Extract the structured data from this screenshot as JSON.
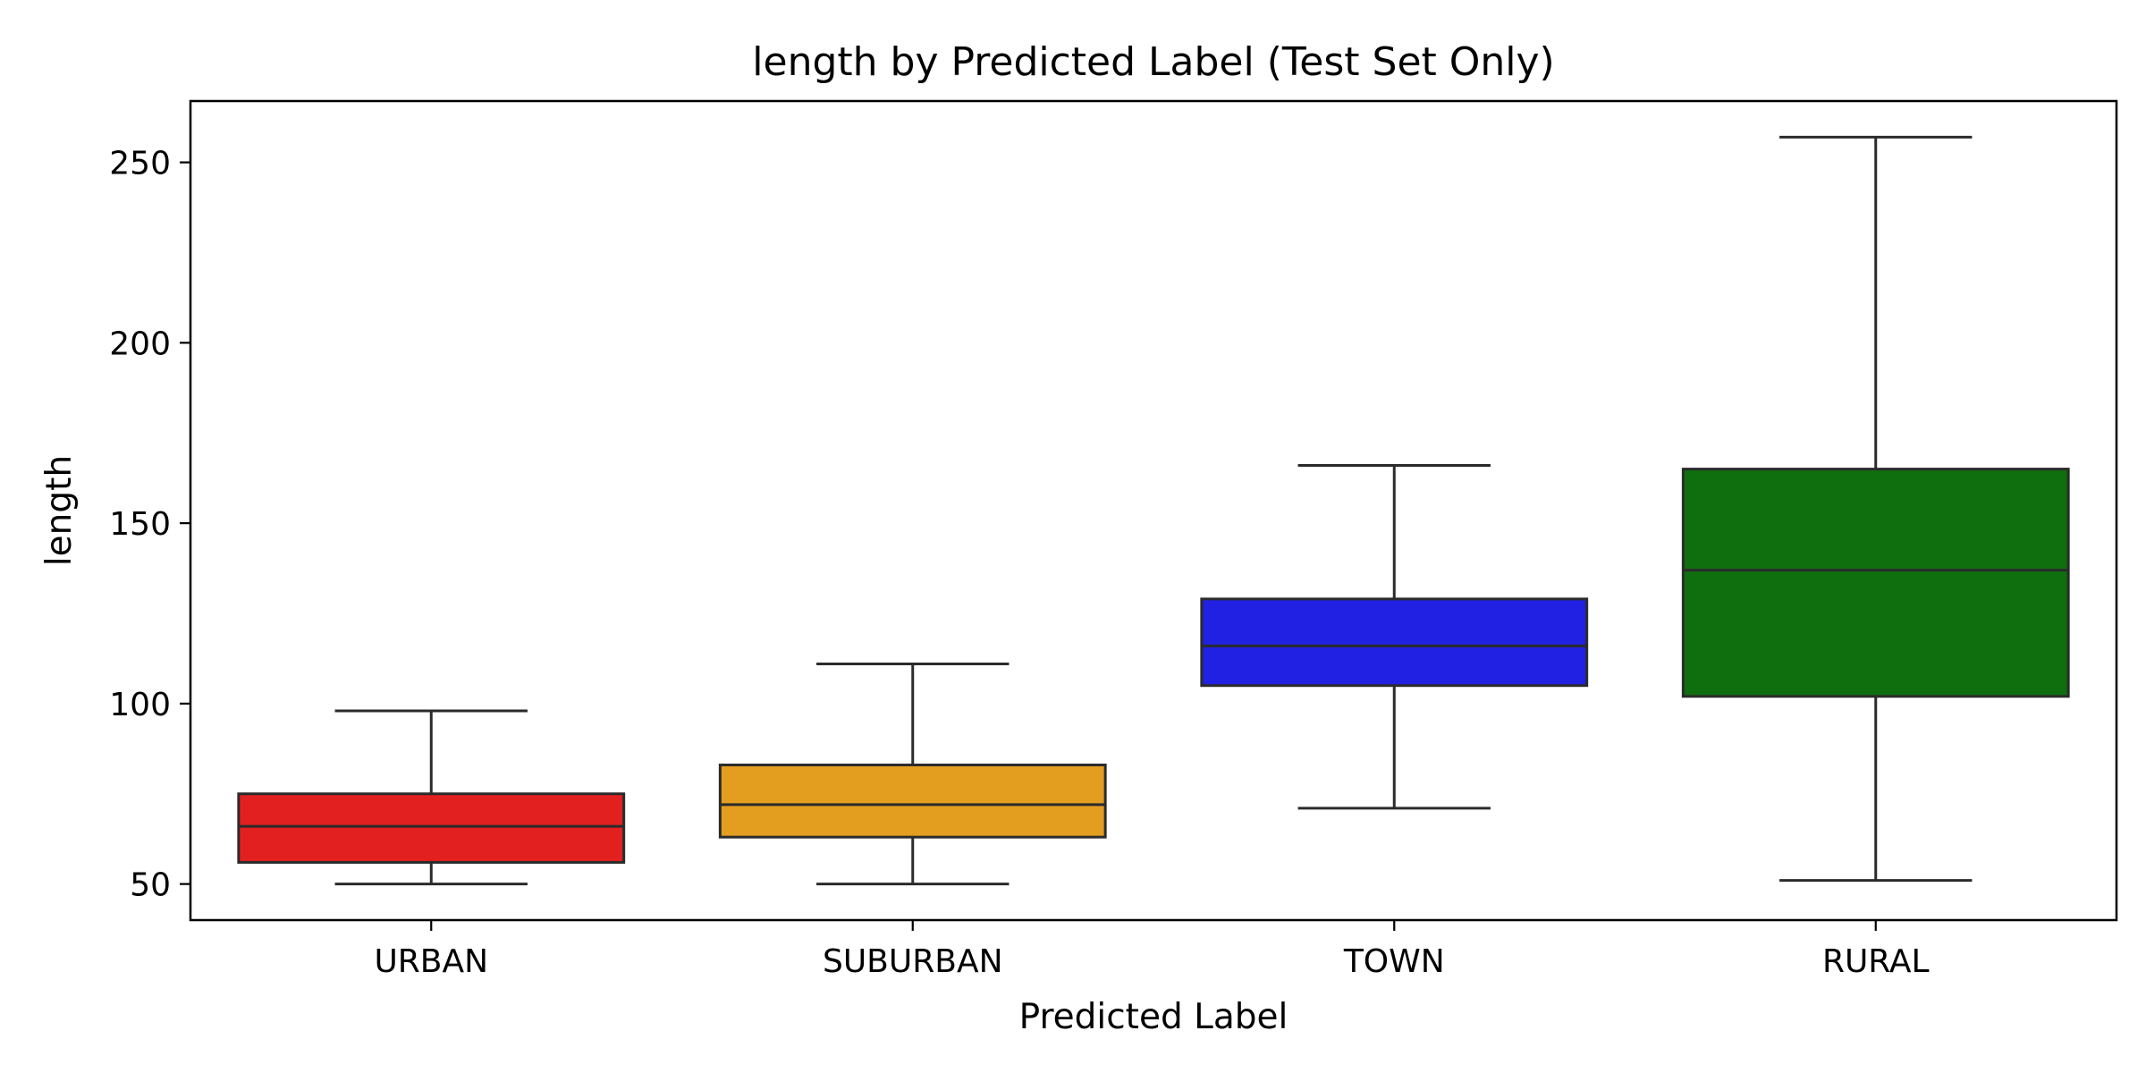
{
  "chart_data": {
    "type": "box",
    "title": "length by Predicted Label (Test Set Only)",
    "xlabel": "Predicted Label",
    "ylabel": "length",
    "ylim": [
      40,
      267
    ],
    "yticks": [
      50,
      100,
      150,
      200,
      250
    ],
    "grid": false,
    "categories": [
      "URBAN",
      "SUBURBAN",
      "TOWN",
      "RURAL"
    ],
    "colors": [
      "#e32020",
      "#e39d1f",
      "#2121e3",
      "#0f6f0f"
    ],
    "boxes": [
      {
        "label": "URBAN",
        "whisker_low": 50,
        "q1": 56,
        "median": 66,
        "q3": 75,
        "whisker_high": 98
      },
      {
        "label": "SUBURBAN",
        "whisker_low": 50,
        "q1": 63,
        "median": 72,
        "q3": 83,
        "whisker_high": 111
      },
      {
        "label": "TOWN",
        "whisker_low": 71,
        "q1": 105,
        "median": 116,
        "q3": 129,
        "whisker_high": 166
      },
      {
        "label": "RURAL",
        "whisker_low": 51,
        "q1": 102,
        "median": 137,
        "q3": 165,
        "whisker_high": 257
      }
    ]
  }
}
